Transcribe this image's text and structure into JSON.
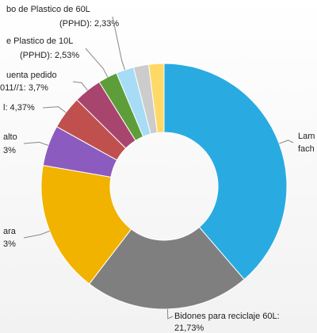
{
  "chart_data": {
    "type": "donut",
    "labels": [
      [
        "Lam",
        "fach"
      ],
      [
        "Bidones para reciclaje 60L:",
        "21,73%"
      ],
      [
        "ara",
        "3%"
      ],
      [
        "alto",
        "3%"
      ],
      [
        "l: 4,37%"
      ],
      [
        "uenta pedido",
        "011//1: 3,7%"
      ],
      [
        "e Plastico de 10L",
        "(PPHD): 2,53%"
      ],
      [
        "bo de Plastico de 60L",
        "(PPHD): 2,33%"
      ],
      null,
      null
    ],
    "values": [
      38.68,
      21.73,
      17.33,
      5.33,
      4.37,
      3.7,
      2.53,
      2.33,
      2,
      2
    ],
    "colors": [
      "#29abe2",
      "#7f7f7f",
      "#f2b200",
      "#8c5bbf",
      "#c0504d",
      "#a8456f",
      "#5e9e3a",
      "#a6dcf5",
      "#cccccc",
      "#ffd966"
    ]
  }
}
